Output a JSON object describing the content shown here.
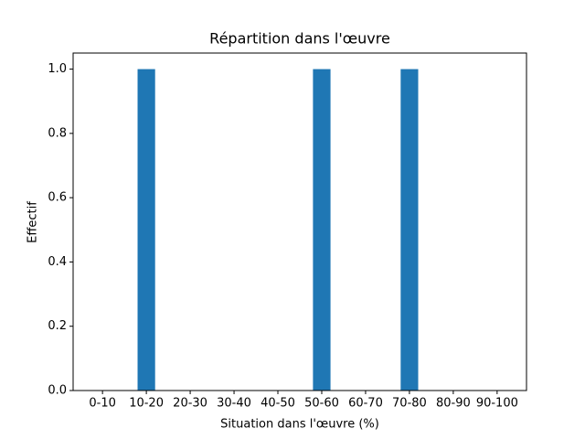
{
  "chart_data": {
    "type": "bar",
    "title": "Répartition dans l'œuvre",
    "x_label": "Situation dans l'œuvre (%)",
    "y_label": "Effectif",
    "categories": [
      "0-10",
      "10-20",
      "20-30",
      "30-40",
      "40-50",
      "50-60",
      "60-70",
      "70-80",
      "80-90",
      "90-100"
    ],
    "values": [
      0,
      1,
      0,
      0,
      0,
      1,
      0,
      1,
      0,
      0
    ],
    "color": "#1f77b4",
    "ylim": [
      0,
      1.05
    ],
    "yticks": [
      {
        "value": 0,
        "label": "0.0"
      },
      {
        "value": 0.2,
        "label": "0.2"
      },
      {
        "value": 0.4,
        "label": "0.4"
      },
      {
        "value": 0.6,
        "label": "0.6"
      },
      {
        "value": 0.8,
        "label": "0.8"
      },
      {
        "value": 1,
        "label": "1.0"
      }
    ],
    "grid": false
  }
}
